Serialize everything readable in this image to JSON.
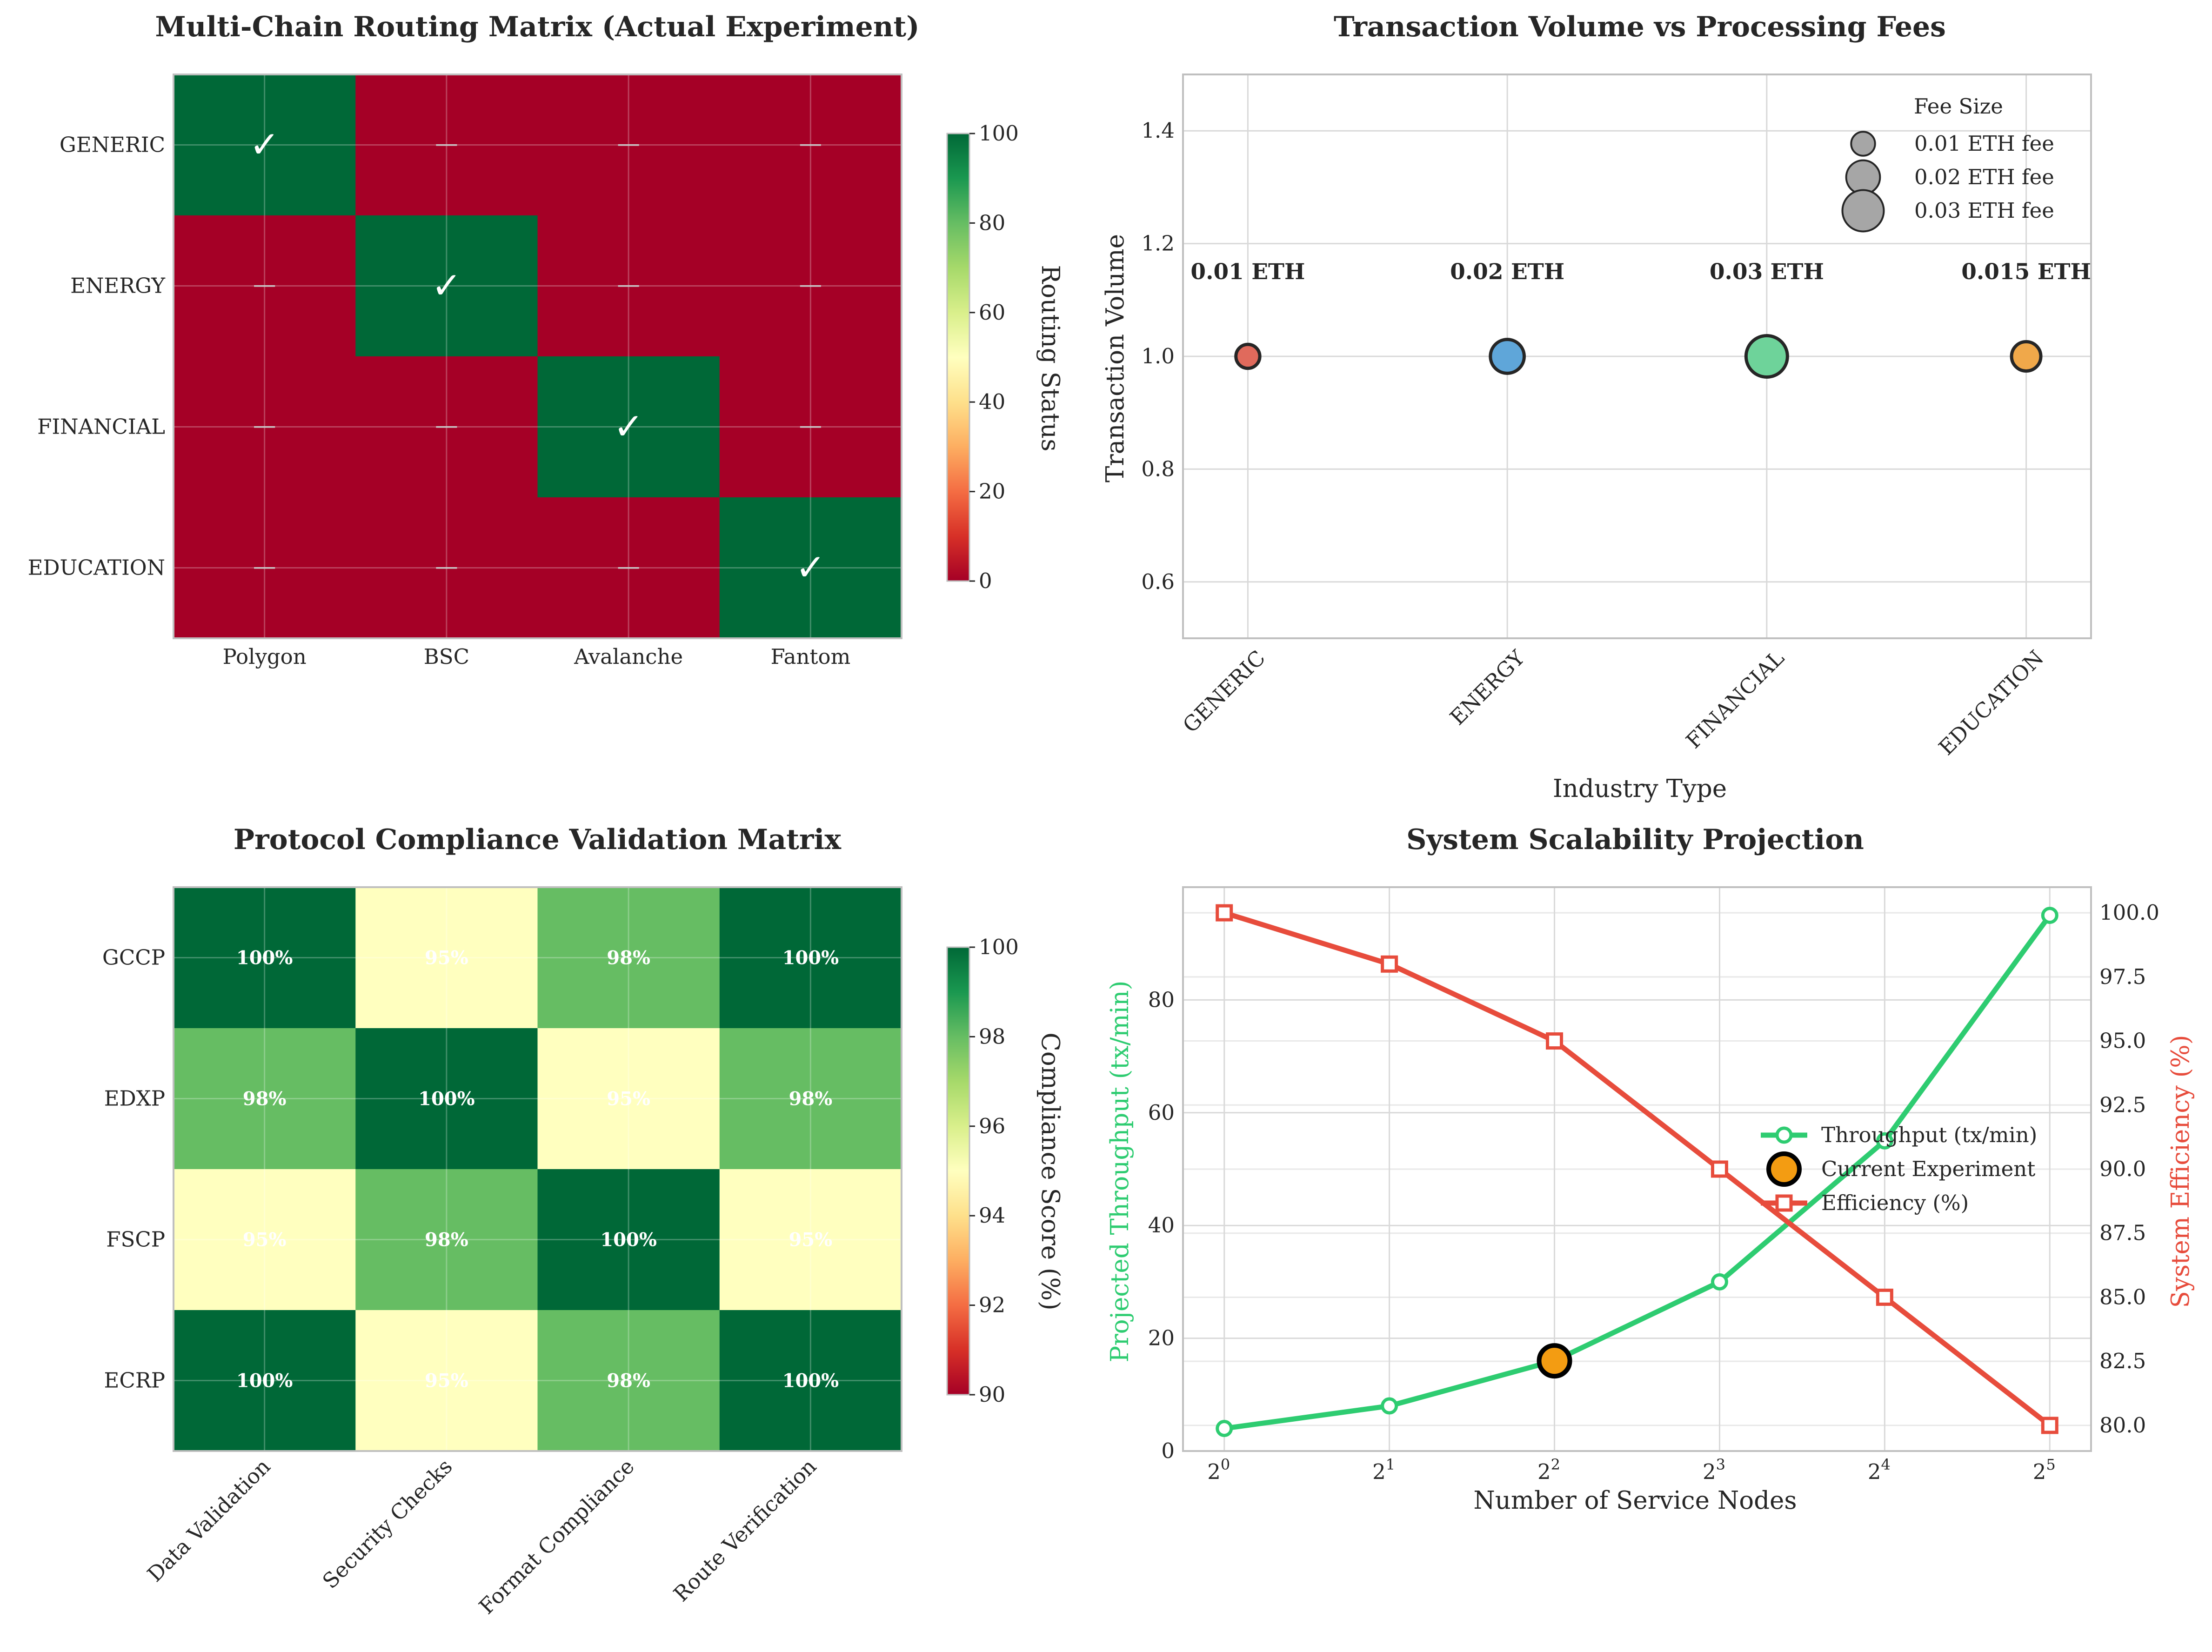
{
  "chart_data": [
    {
      "type": "heatmap",
      "title": "Multi-Chain Routing Matrix (Actual Experiment)",
      "rows": [
        "GENERIC",
        "ENERGY",
        "FINANCIAL",
        "EDUCATION"
      ],
      "columns": [
        "Polygon",
        "BSC",
        "Avalanche",
        "Fantom"
      ],
      "values": [
        [
          100,
          0,
          0,
          0
        ],
        [
          0,
          100,
          0,
          0
        ],
        [
          0,
          0,
          100,
          0
        ],
        [
          0,
          0,
          0,
          100
        ]
      ],
      "cell_marks": [
        [
          "✓",
          "—",
          "—",
          "—"
        ],
        [
          "—",
          "✓",
          "—",
          "—"
        ],
        [
          "—",
          "—",
          "✓",
          "—"
        ],
        [
          "—",
          "—",
          "—",
          "✓"
        ]
      ],
      "colorbar": {
        "label": "Routing Status",
        "range": [
          0,
          100
        ],
        "ticks": [
          "0",
          "20",
          "40",
          "60",
          "80",
          "100"
        ]
      },
      "colormap": "RdYlGn"
    },
    {
      "type": "scatter",
      "title": "Transaction Volume vs Processing Fees",
      "xlabel": "Industry Type",
      "ylabel": "Transaction Volume",
      "categories": [
        "GENERIC",
        "ENERGY",
        "FINANCIAL",
        "EDUCATION"
      ],
      "values": [
        1.0,
        1.0,
        1.0,
        1.0
      ],
      "fees": [
        0.01,
        0.02,
        0.03,
        0.015
      ],
      "annotations": [
        "0.01 ETH",
        "0.02 ETH",
        "0.03 ETH",
        "0.015 ETH"
      ],
      "colors": [
        "#e06a5c",
        "#5fa6d9",
        "#6ed39a",
        "#f0a84a"
      ],
      "ylim": [
        0.5,
        1.5
      ],
      "yticks": [
        "0.6",
        "0.8",
        "1.0",
        "1.2",
        "1.4"
      ],
      "grid": true,
      "legend": {
        "title": "Fee Size",
        "placement": "top-right",
        "entries": [
          {
            "label": "0.01 ETH fee",
            "fee": 0.01
          },
          {
            "label": "0.02 ETH fee",
            "fee": 0.02
          },
          {
            "label": "0.03 ETH fee",
            "fee": 0.03
          }
        ]
      }
    },
    {
      "type": "heatmap",
      "title": "Protocol Compliance Validation Matrix",
      "rows": [
        "GCCP",
        "EDXP",
        "FSCP",
        "ECRP"
      ],
      "columns": [
        "Data Validation",
        "Security Checks",
        "Format Compliance",
        "Route Verification"
      ],
      "values": [
        [
          100,
          95,
          98,
          100
        ],
        [
          98,
          100,
          95,
          98
        ],
        [
          95,
          98,
          100,
          95
        ],
        [
          100,
          95,
          98,
          100
        ]
      ],
      "cell_labels": [
        [
          "100%",
          "95%",
          "98%",
          "100%"
        ],
        [
          "98%",
          "100%",
          "95%",
          "98%"
        ],
        [
          "95%",
          "98%",
          "100%",
          "95%"
        ],
        [
          "100%",
          "95%",
          "98%",
          "100%"
        ]
      ],
      "colorbar": {
        "label": "Compliance Score (%)",
        "range": [
          90,
          100
        ],
        "ticks": [
          "90",
          "92",
          "94",
          "96",
          "98",
          "100"
        ]
      },
      "colormap": "RdYlGn"
    },
    {
      "type": "line",
      "title": "System Scalability Projection",
      "xlabel": "Number of Service Nodes",
      "x": [
        1,
        2,
        4,
        8,
        16,
        32
      ],
      "x_scale": "log2",
      "xtick_base": "2",
      "xtick_exponents": [
        "0",
        "1",
        "2",
        "3",
        "4",
        "5"
      ],
      "grid": true,
      "series": [
        {
          "name": "Throughput (tx/min)",
          "axis": "left",
          "values": [
            4,
            8,
            16,
            30,
            55,
            95
          ],
          "color": "#2ecc71",
          "marker": "circle"
        },
        {
          "name": "Efficiency (%)",
          "axis": "right",
          "values": [
            100,
            98,
            95,
            90,
            85,
            80
          ],
          "color": "#e74c3c",
          "marker": "square"
        }
      ],
      "highlight": {
        "name": "Current Experiment",
        "x": 4,
        "y": 16,
        "color": "#f39c12"
      },
      "left_axis": {
        "label": "Projected Throughput (tx/min)",
        "range": [
          0,
          100
        ],
        "ticks": [
          "0",
          "20",
          "40",
          "60",
          "80"
        ],
        "color": "#2ecc71"
      },
      "right_axis": {
        "label": "System Efficiency (%)",
        "range": [
          79,
          101
        ],
        "ticks": [
          "80.0",
          "82.5",
          "85.0",
          "87.5",
          "90.0",
          "92.5",
          "95.0",
          "97.5",
          "100.0"
        ],
        "color": "#e74c3c"
      },
      "legend_placement": "center-right"
    }
  ]
}
